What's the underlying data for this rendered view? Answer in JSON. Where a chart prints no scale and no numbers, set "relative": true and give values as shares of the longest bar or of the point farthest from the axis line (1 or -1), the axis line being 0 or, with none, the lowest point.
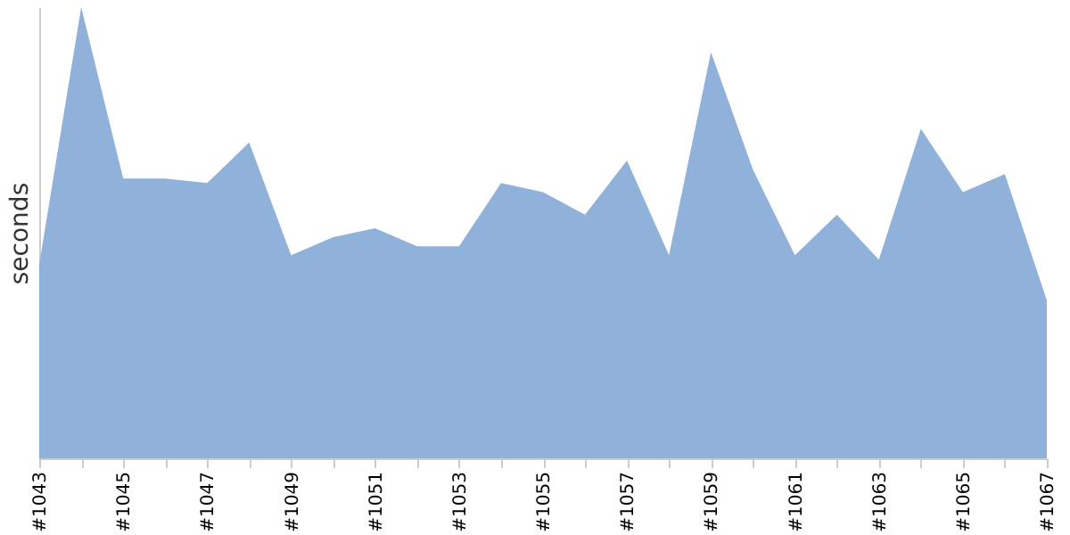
{
  "chart_data": {
    "type": "area",
    "ylabel": "seconds",
    "relative": true,
    "grid": false,
    "color": "#8fb1da",
    "categories": [
      "#1043",
      null,
      "#1045",
      null,
      "#1047",
      null,
      "#1049",
      null,
      "#1051",
      null,
      "#1053",
      null,
      "#1055",
      null,
      "#1057",
      null,
      "#1059",
      null,
      "#1061",
      null,
      "#1063",
      null,
      "#1065",
      null,
      "#1067"
    ],
    "values": [
      0.43,
      1.0,
      0.62,
      0.62,
      0.61,
      0.7,
      0.45,
      0.49,
      0.51,
      0.47,
      0.47,
      0.61,
      0.59,
      0.54,
      0.66,
      0.45,
      0.9,
      0.64,
      0.45,
      0.54,
      0.44,
      0.73,
      0.59,
      0.63,
      0.35
    ]
  }
}
